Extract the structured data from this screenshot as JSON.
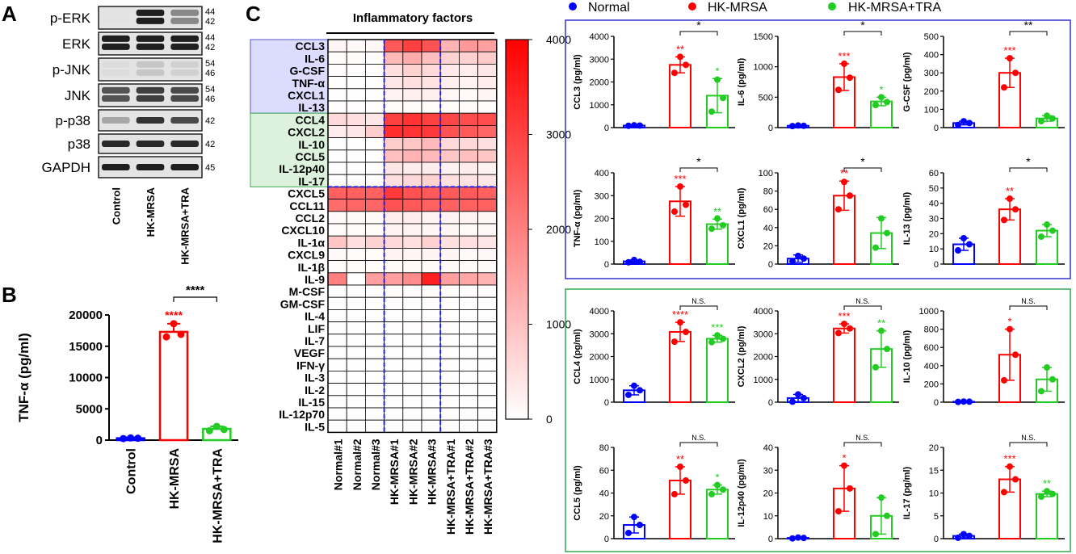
{
  "panel_labels": {
    "a": "A",
    "b": "B",
    "c": "C"
  },
  "blot": {
    "rows": [
      {
        "label": "p-ERK",
        "mw": [
          "44",
          "42"
        ]
      },
      {
        "label": "ERK",
        "mw": [
          "44",
          "42"
        ]
      },
      {
        "label": "p-JNK",
        "mw": [
          "54",
          "46"
        ]
      },
      {
        "label": "JNK",
        "mw": [
          "54",
          "46"
        ]
      },
      {
        "label": "p-p38",
        "mw": [
          "42"
        ]
      },
      {
        "label": "p38",
        "mw": [
          "42"
        ]
      },
      {
        "label": "GAPDH",
        "mw": [
          "45"
        ]
      }
    ],
    "lanes": [
      "Control",
      "HK-MRSA",
      "HK-MRSA+TRA"
    ],
    "intensity": [
      [
        0.02,
        0.95,
        0.45
      ],
      [
        0.95,
        0.95,
        0.95
      ],
      [
        0.05,
        0.15,
        0.1
      ],
      [
        0.7,
        0.8,
        0.75
      ],
      [
        0.3,
        0.85,
        0.75
      ],
      [
        0.9,
        0.9,
        0.9
      ],
      [
        0.95,
        0.95,
        0.95
      ]
    ]
  },
  "colors": {
    "normal": "#0000ff",
    "mrsa": "#ff0000",
    "tra": "#22cc22",
    "panel_blue": "#3333cc",
    "panel_green": "#33aa55"
  },
  "legend": {
    "items": [
      "Normal",
      "HK-MRSA",
      "HK-MRSA+TRA"
    ]
  },
  "heatmap": {
    "title": "Inflammatory factors",
    "cytokines": [
      "CCL3",
      "IL-6",
      "G-CSF",
      "TNF-α",
      "CXCL1",
      "IL-13",
      "CCL4",
      "CXCL2",
      "IL-10",
      "CCL5",
      "IL-12p40",
      "IL-17",
      "CXCL5",
      "CCL11",
      "CCL2",
      "CXCL10",
      "IL-1α",
      "CXCL9",
      "IL-1β",
      "IL-9",
      "M-CSF",
      "GM-CSF",
      "IL-4",
      "LIF",
      "IL-7",
      "VEGF",
      "IFN-γ",
      "IL-3",
      "IL-2",
      "IL-15",
      "IL-12p70",
      "IL-5"
    ],
    "samples": [
      "Normal#1",
      "Normal#2",
      "Normal#3",
      "HK-MRSA#1",
      "HK-MRSA#2",
      "HK-MRSA#3",
      "HK-MRSA+TRA#1",
      "HK-MRSA+TRA#2",
      "HK-MRSA+TRA#3"
    ],
    "colorbar_ticks": [
      "4000",
      "3000",
      "2000",
      "1000",
      "0"
    ]
  },
  "chart_data": [
    {
      "type": "bar",
      "panel": "B",
      "categories": [
        "Control",
        "HK-MRSA",
        "HK-MRSA+TRA"
      ],
      "values": [
        300,
        17300,
        1800
      ],
      "errors": [
        150,
        1300,
        400
      ],
      "points": [
        [
          250,
          350,
          300
        ],
        [
          16500,
          18600,
          16900
        ],
        [
          1500,
          2200,
          1700
        ]
      ],
      "ylabel": "TNF-α (pg/ml)",
      "ylim": [
        0,
        20000
      ],
      "yticks": [
        "0",
        "5000",
        "10000",
        "15000",
        "20000"
      ],
      "stars": [
        "",
        "****",
        ""
      ],
      "bracket": "****"
    },
    {
      "type": "heatmap",
      "panel": "C",
      "rows": [
        "CCL3",
        "IL-6",
        "G-CSF",
        "TNF-α",
        "CXCL1",
        "IL-13",
        "CCL4",
        "CXCL2",
        "IL-10",
        "CCL5",
        "IL-12p40",
        "IL-17",
        "CXCL5",
        "CCL11",
        "CCL2",
        "CXCL10",
        "IL-1α",
        "CXCL9",
        "IL-1β",
        "IL-9",
        "M-CSF",
        "GM-CSF",
        "IL-4",
        "LIF",
        "IL-7",
        "VEGF",
        "IFN-γ",
        "IL-3",
        "IL-2",
        "IL-15",
        "IL-12p70",
        "IL-5"
      ],
      "columns": [
        "Normal#1",
        "Normal#2",
        "Normal#3",
        "HK-MRSA#1",
        "HK-MRSA#2",
        "HK-MRSA#3",
        "HK-MRSA+TRA#1",
        "HK-MRSA+TRA#2",
        "HK-MRSA+TRA#3"
      ],
      "range": [
        0,
        4000
      ],
      "values": [
        [
          150,
          100,
          120,
          2600,
          3000,
          2700,
          1200,
          1600,
          1500
        ],
        [
          60,
          40,
          50,
          1100,
          1300,
          1000,
          700,
          700,
          800
        ],
        [
          40,
          30,
          30,
          500,
          700,
          600,
          350,
          300,
          400
        ],
        [
          30,
          20,
          30,
          400,
          500,
          450,
          250,
          200,
          300
        ],
        [
          20,
          20,
          20,
          200,
          250,
          230,
          120,
          100,
          150
        ],
        [
          30,
          30,
          30,
          60,
          60,
          60,
          50,
          50,
          50
        ],
        [
          600,
          500,
          400,
          3000,
          3200,
          3000,
          2900,
          2800,
          2800
        ],
        [
          300,
          400,
          800,
          3300,
          3200,
          3100,
          2700,
          2600,
          2400
        ],
        [
          20,
          20,
          20,
          800,
          900,
          1100,
          600,
          600,
          500
        ],
        [
          20,
          20,
          20,
          1000,
          1200,
          1100,
          900,
          1000,
          900
        ],
        [
          20,
          20,
          20,
          400,
          300,
          300,
          200,
          300,
          200
        ],
        [
          20,
          20,
          20,
          500,
          600,
          700,
          500,
          450,
          400
        ],
        [
          2500,
          2500,
          2500,
          3100,
          2700,
          2600,
          2600,
          2600,
          2500
        ],
        [
          2300,
          2400,
          2400,
          2700,
          2600,
          2500,
          2500,
          2500,
          2500
        ],
        [
          100,
          80,
          90,
          300,
          300,
          200,
          200,
          200,
          150
        ],
        [
          60,
          60,
          60,
          200,
          200,
          150,
          150,
          100,
          120
        ],
        [
          900,
          500,
          700,
          600,
          500,
          700,
          500,
          500,
          400
        ],
        [
          80,
          60,
          70,
          200,
          150,
          180,
          150,
          100,
          120
        ],
        [
          60,
          60,
          60,
          100,
          100,
          100,
          80,
          80,
          80
        ],
        [
          2000,
          0,
          1500,
          1500,
          1800,
          3500,
          1500,
          1400,
          1200
        ],
        [
          20,
          20,
          20,
          40,
          40,
          40,
          30,
          30,
          30
        ],
        [
          20,
          20,
          20,
          30,
          30,
          30,
          20,
          20,
          20
        ],
        [
          10,
          10,
          10,
          20,
          20,
          20,
          10,
          10,
          10
        ],
        [
          10,
          10,
          10,
          30,
          30,
          30,
          20,
          20,
          20
        ],
        [
          10,
          10,
          10,
          20,
          20,
          20,
          10,
          10,
          10
        ],
        [
          10,
          10,
          10,
          20,
          20,
          20,
          10,
          10,
          10
        ],
        [
          10,
          10,
          10,
          20,
          20,
          20,
          10,
          10,
          10
        ],
        [
          10,
          10,
          10,
          20,
          20,
          20,
          10,
          10,
          10
        ],
        [
          10,
          10,
          10,
          20,
          20,
          20,
          10,
          10,
          10
        ],
        [
          10,
          10,
          10,
          20,
          20,
          20,
          10,
          10,
          10
        ],
        [
          10,
          10,
          10,
          20,
          20,
          20,
          10,
          10,
          10
        ],
        [
          10,
          10,
          10,
          20,
          20,
          20,
          10,
          10,
          10
        ]
      ]
    },
    {
      "type": "bar",
      "panel": "C-blue",
      "ylabel": "CCL3 (pg/ml)",
      "ylim": [
        0,
        4000
      ],
      "yticks": [
        "0",
        "1000",
        "2000",
        "3000",
        "4000"
      ],
      "values": [
        90,
        2750,
        1400
      ],
      "errors": [
        20,
        350,
        750
      ],
      "points": [
        [
          80,
          100,
          90
        ],
        [
          2400,
          3100,
          2750
        ],
        [
          700,
          2100,
          1300
        ]
      ],
      "stars": [
        "",
        "**",
        "*"
      ],
      "bracket": "*"
    },
    {
      "type": "bar",
      "panel": "C-blue",
      "ylabel": "IL-6 (pg/ml)",
      "ylim": [
        0,
        1500
      ],
      "yticks": [
        "0",
        "500",
        "1000",
        "1500"
      ],
      "values": [
        30,
        830,
        430
      ],
      "errors": [
        10,
        220,
        70
      ],
      "points": [
        [
          25,
          35,
          30
        ],
        [
          620,
          1050,
          820
        ],
        [
          370,
          500,
          420
        ]
      ],
      "stars": [
        "",
        "***",
        "*"
      ],
      "bracket": "*"
    },
    {
      "type": "bar",
      "panel": "C-blue",
      "ylabel": "G-CSF (pg/ml)",
      "ylim": [
        0,
        500
      ],
      "yticks": [
        "0",
        "100",
        "200",
        "300",
        "400",
        "500"
      ],
      "values": [
        25,
        300,
        50
      ],
      "errors": [
        10,
        80,
        15
      ],
      "points": [
        [
          15,
          35,
          25
        ],
        [
          220,
          380,
          300
        ],
        [
          35,
          65,
          50
        ]
      ],
      "stars": [
        "",
        "***",
        ""
      ],
      "bracket": "**"
    },
    {
      "type": "bar",
      "panel": "C-blue",
      "ylabel": "TNF-α (pg/ml)",
      "ylim": [
        0,
        400
      ],
      "yticks": [
        "0",
        "100",
        "200",
        "300",
        "400"
      ],
      "values": [
        12,
        275,
        175
      ],
      "errors": [
        6,
        65,
        22
      ],
      "points": [
        [
          8,
          18,
          10
        ],
        [
          230,
          340,
          260
        ],
        [
          155,
          200,
          170
        ]
      ],
      "stars": [
        "",
        "***",
        "**"
      ],
      "bracket": "*"
    },
    {
      "type": "bar",
      "panel": "C-blue",
      "ylabel": "CXCL1 (pg/ml)",
      "ylim": [
        0,
        100
      ],
      "yticks": [
        "0",
        "20",
        "40",
        "60",
        "80",
        "100"
      ],
      "values": [
        6,
        75,
        34
      ],
      "errors": [
        4,
        16,
        17
      ],
      "points": [
        [
          3,
          9,
          6
        ],
        [
          60,
          90,
          75
        ],
        [
          18,
          50,
          34
        ]
      ],
      "stars": [
        "",
        "**",
        ""
      ],
      "bracket": "*"
    },
    {
      "type": "bar",
      "panel": "C-blue",
      "ylabel": "IL-13 (pg/ml)",
      "ylim": [
        0,
        60
      ],
      "yticks": [
        "0",
        "10",
        "20",
        "30",
        "40",
        "50",
        "60"
      ],
      "values": [
        13,
        36,
        22
      ],
      "errors": [
        4,
        7,
        4
      ],
      "points": [
        [
          9,
          17,
          13
        ],
        [
          29,
          43,
          36
        ],
        [
          18,
          26,
          22
        ]
      ],
      "stars": [
        "",
        "**",
        ""
      ],
      "bracket": "*"
    },
    {
      "type": "bar",
      "panel": "C-green",
      "ylabel": "CCL4 (pg/ml)",
      "ylim": [
        0,
        4000
      ],
      "yticks": [
        "0",
        "1000",
        "2000",
        "3000",
        "4000"
      ],
      "values": [
        520,
        3080,
        2780
      ],
      "errors": [
        200,
        420,
        150
      ],
      "points": [
        [
          320,
          720,
          520
        ],
        [
          2650,
          3500,
          3080
        ],
        [
          2630,
          2930,
          2780
        ]
      ],
      "stars": [
        "",
        "****",
        "***"
      ],
      "bracket": "N.S."
    },
    {
      "type": "bar",
      "panel": "C-green",
      "ylabel": "CXCL2 (pg/ml)",
      "ylim": [
        0,
        4000
      ],
      "yticks": [
        "0",
        "1000",
        "2000",
        "3000",
        "4000"
      ],
      "values": [
        180,
        3230,
        2330
      ],
      "errors": [
        160,
        200,
        800
      ],
      "points": [
        [
          20,
          340,
          180
        ],
        [
          3030,
          3430,
          3230
        ],
        [
          1530,
          3130,
          2330
        ]
      ],
      "stars": [
        "",
        "***",
        "**"
      ],
      "bracket": "N.S."
    },
    {
      "type": "bar",
      "panel": "C-green",
      "ylabel": "IL-10 (pg/ml)",
      "ylim": [
        0,
        1000
      ],
      "yticks": [
        "0",
        "200",
        "400",
        "600",
        "800",
        "1000"
      ],
      "values": [
        5,
        520,
        250
      ],
      "errors": [
        2,
        280,
        130
      ],
      "points": [
        [
          3,
          7,
          5
        ],
        [
          240,
          800,
          520
        ],
        [
          120,
          380,
          250
        ]
      ],
      "stars": [
        "",
        "*",
        ""
      ],
      "bracket": "N.S."
    },
    {
      "type": "bar",
      "panel": "C-green",
      "ylabel": "CCL5 (pg/ml)",
      "ylim": [
        0,
        80
      ],
      "yticks": [
        "0",
        "20",
        "40",
        "60",
        "80"
      ],
      "values": [
        12,
        51,
        43
      ],
      "errors": [
        7,
        12,
        4
      ],
      "points": [
        [
          5,
          19,
          12
        ],
        [
          39,
          63,
          51
        ],
        [
          39,
          47,
          43
        ]
      ],
      "stars": [
        "",
        "**",
        "*"
      ],
      "bracket": "N.S."
    },
    {
      "type": "bar",
      "panel": "C-green",
      "ylabel": "IL-12p40 (pg/ml)",
      "ylim": [
        0,
        40
      ],
      "yticks": [
        "0",
        "10",
        "20",
        "30",
        "40"
      ],
      "values": [
        0.3,
        22,
        10
      ],
      "errors": [
        0.2,
        10,
        8
      ],
      "points": [
        [
          0.1,
          0.5,
          0.3
        ],
        [
          12,
          32,
          22
        ],
        [
          2,
          18,
          10
        ]
      ],
      "stars": [
        "",
        "*",
        ""
      ],
      "bracket": "N.S."
    },
    {
      "type": "bar",
      "panel": "C-green",
      "ylabel": "IL-17 (pg/ml)",
      "ylim": [
        0,
        20
      ],
      "yticks": [
        "0",
        "5",
        "10",
        "15",
        "20"
      ],
      "values": [
        0.6,
        13,
        9.8
      ],
      "errors": [
        0.4,
        2.8,
        0.6
      ],
      "points": [
        [
          0.2,
          1,
          0.6
        ],
        [
          10.2,
          15.8,
          13
        ],
        [
          9.2,
          10.4,
          9.8
        ]
      ],
      "stars": [
        "",
        "***",
        "**"
      ],
      "bracket": "N.S."
    }
  ]
}
